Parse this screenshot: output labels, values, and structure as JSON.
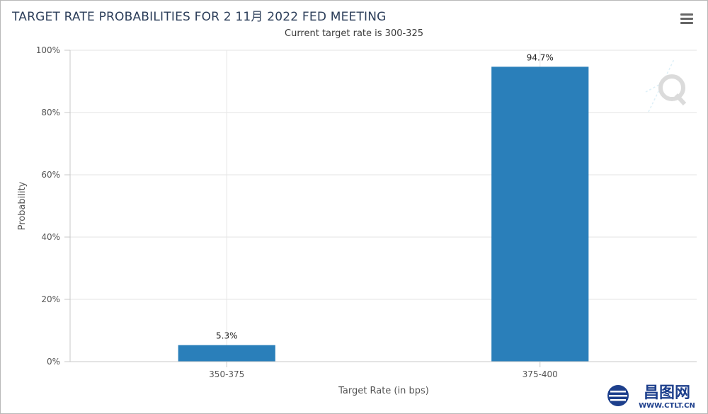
{
  "chart_data": {
    "type": "bar",
    "title": "TARGET RATE PROBABILITIES FOR 2 11月 2022 FED MEETING",
    "subtitle": "Current target rate is 300-325",
    "xlabel": "Target Rate (in bps)",
    "ylabel": "Probability",
    "categories": [
      "350-375",
      "375-400"
    ],
    "values": [
      5.3,
      94.7
    ],
    "data_labels": [
      "5.3%",
      "94.7%"
    ],
    "ylim": [
      0,
      100
    ],
    "yticks": [
      0,
      20,
      40,
      60,
      80,
      100
    ],
    "ytick_labels": [
      "0%",
      "20%",
      "40%",
      "60%",
      "80%",
      "100%"
    ],
    "grid": true,
    "legend": "none",
    "bar_color": "#2a7fba"
  },
  "toolbar": {
    "menu_icon": "hamburger-menu-icon"
  },
  "watermark": {
    "logo_icon": "q-watermark-icon",
    "brand_name": "昌图网",
    "brand_url": "WWW.CTLT.CN",
    "brand_color": "#1d3f8c"
  }
}
